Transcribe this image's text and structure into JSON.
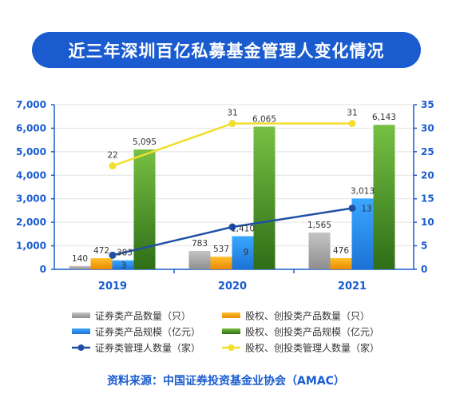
{
  "title": "近三年深圳百亿私募基金管理人变化情况",
  "source": "资料来源：中国证券投资基金业协会（AMAC）",
  "colors": {
    "gray": "#a9a9a9",
    "orange": "#f4a30c",
    "blue_bar": "#2a8fe9",
    "green": "#4f9a2c",
    "navy": "#1f4fa5",
    "yellow": "#f2de2e",
    "axis": "#1a5ccf"
  },
  "chart_data": {
    "type": "bar",
    "categories": [
      "2019",
      "2020",
      "2021"
    ],
    "y_left": {
      "min": 0,
      "max": 7000,
      "ticks": [
        "0",
        "1,000",
        "2,000",
        "3,000",
        "4,000",
        "5,000",
        "6,000",
        "7,000"
      ]
    },
    "y_right": {
      "min": 0,
      "max": 35,
      "ticks": [
        "0",
        "5",
        "10",
        "15",
        "20",
        "25",
        "30",
        "35"
      ]
    },
    "bar_series": [
      {
        "name": "证券类产品数量（只）",
        "values": [
          140,
          783,
          1565
        ],
        "labels": [
          "140",
          "783",
          "1,565"
        ]
      },
      {
        "name": "股权、创投类产品数量（只）",
        "values": [
          472,
          537,
          476
        ],
        "labels": [
          "472",
          "537",
          "476"
        ]
      },
      {
        "name": "证券类产品规模（亿元）",
        "values": [
          383,
          1410,
          3013
        ],
        "labels": [
          "383",
          "1,410",
          "3,013"
        ]
      },
      {
        "name": "股权、创投类产品规模（亿元）",
        "values": [
          5095,
          6065,
          6143
        ],
        "labels": [
          "5,095",
          "6,065",
          "6,143"
        ]
      }
    ],
    "line_series": [
      {
        "name": "证券类管理人数量（家）",
        "values": [
          3,
          9,
          13
        ],
        "labels": [
          "3",
          "9",
          "13"
        ]
      },
      {
        "name": "股权、创投类管理人数量（家）",
        "values": [
          22,
          31,
          31
        ],
        "labels": [
          "22",
          "31",
          "31"
        ]
      }
    ],
    "legend_position": "bottom"
  }
}
